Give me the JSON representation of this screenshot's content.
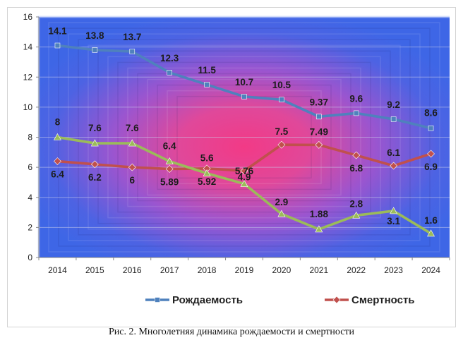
{
  "chart_data": {
    "type": "line",
    "categories": [
      "2014",
      "2015",
      "2016",
      "2017",
      "2018",
      "2019",
      "2020",
      "2021",
      "2022",
      "2023",
      "2024"
    ],
    "ylim": [
      0,
      16
    ],
    "yticks": [
      0,
      2,
      4,
      6,
      8,
      10,
      12,
      14,
      16
    ],
    "ytick_labels": [
      "0",
      "2",
      "4",
      "6",
      "8",
      "10",
      "12",
      "14",
      "16"
    ],
    "series": [
      {
        "name": "Рождаемость",
        "color": "#4f81bd",
        "marker": "square",
        "values": [
          14.1,
          13.8,
          13.7,
          12.3,
          11.5,
          10.7,
          10.5,
          9.37,
          9.6,
          9.2,
          8.6
        ],
        "labels": [
          "14.1",
          "13.8",
          "13.7",
          "12.3",
          "11.5",
          "10.7",
          "10.5",
          "9.37",
          "9.6",
          "9.2",
          "8.6"
        ]
      },
      {
        "name": "Смертность",
        "color": "#c0504d",
        "marker": "diamond",
        "values": [
          6.4,
          6.2,
          6.0,
          5.89,
          5.92,
          5.76,
          7.5,
          7.49,
          6.8,
          6.1,
          6.9
        ],
        "labels": [
          "6.4",
          "6.2",
          "6",
          "5.89",
          "5.92",
          "5.76",
          "7.5",
          "7.49",
          "6.8",
          "6.1",
          "6.9"
        ]
      },
      {
        "name": "",
        "color": "#9bbb59",
        "marker": "triangle",
        "values": [
          8.0,
          7.6,
          7.6,
          6.4,
          5.6,
          4.9,
          2.9,
          1.88,
          2.8,
          3.1,
          1.6
        ],
        "labels": [
          "8",
          "7.6",
          "7.6",
          "6.4",
          "5.6",
          "4.9",
          "2.9",
          "1.88",
          "2.8",
          "3.1",
          "1.6"
        ]
      }
    ],
    "legend": [
      "Рождаемость",
      "Смертность"
    ],
    "legend_position": "bottom",
    "grid": true
  },
  "caption": "Рис. 2. Многолетняя динамика рождаемости и смертности"
}
